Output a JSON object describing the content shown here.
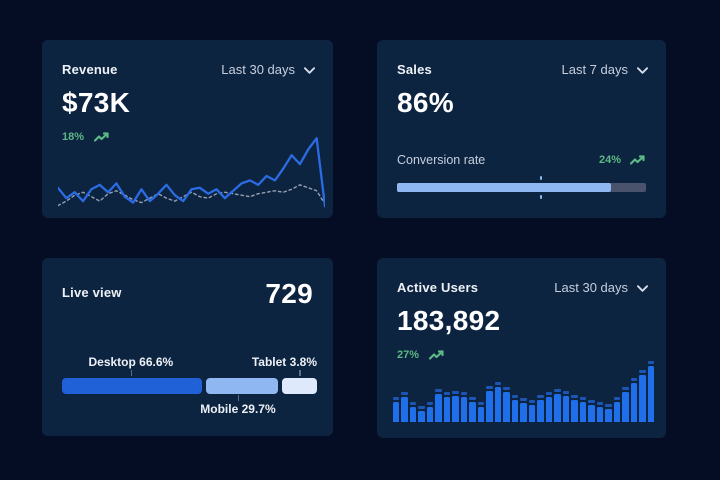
{
  "page": {
    "background": "#050D24",
    "card_background": "#0D2440"
  },
  "colors": {
    "accent_blue": "#2B6BE4",
    "bright_bar_blue": "#1F6FEB",
    "light_blue": "#8FB8F2",
    "pale_blue": "#DEEAFB",
    "green": "#5CB885",
    "muted_text": "#C6CEDD",
    "track_gray": "#49536B",
    "dashed_gray": "#93A0B4"
  },
  "icons": {
    "chevron_down": "chevron-down-icon",
    "trending_up": "trending-up-icon"
  },
  "cards": {
    "revenue": {
      "title": "Revenue",
      "range_label": "Last 30 days",
      "value": "$73K",
      "delta": "18%"
    },
    "sales": {
      "title": "Sales",
      "range_label": "Last 7 days",
      "value": "86%",
      "metric_label": "Conversion rate",
      "delta": "24%"
    },
    "live_view": {
      "title": "Live view",
      "value": "729"
    },
    "active_users": {
      "title": "Active Users",
      "range_label": "Last 30 days",
      "value": "183,892",
      "delta": "27%"
    }
  },
  "chart_data": [
    {
      "id": "revenue-trend",
      "type": "line",
      "title": "Revenue — Last 30 days",
      "xlabel": "",
      "ylabel": "",
      "grid": false,
      "legend": "none",
      "ylim": [
        0,
        100
      ],
      "series": [
        {
          "name": "current period",
          "style": "solid",
          "color": "#2B6BE4",
          "values": [
            30,
            16,
            24,
            12,
            28,
            34,
            24,
            36,
            18,
            10,
            28,
            12,
            22,
            34,
            20,
            12,
            28,
            30,
            22,
            28,
            16,
            26,
            36,
            40,
            34,
            46,
            40,
            56,
            74,
            62,
            82,
            97,
            5
          ]
        },
        {
          "name": "previous period",
          "style": "dashed",
          "color": "#93A0B4",
          "values": [
            6,
            12,
            20,
            24,
            18,
            12,
            22,
            26,
            20,
            14,
            10,
            16,
            22,
            16,
            12,
            18,
            24,
            18,
            16,
            22,
            24,
            22,
            20,
            18,
            22,
            24,
            26,
            24,
            28,
            34,
            30,
            26,
            8
          ]
        }
      ]
    },
    {
      "id": "conversion-progress",
      "type": "bar",
      "subtype": "progress-horizontal",
      "title": "Conversion rate",
      "value_pct": 86,
      "marker_pct": 58,
      "fill_color": "#8FB8F2",
      "track_color": "#49536B"
    },
    {
      "id": "device-split",
      "type": "bar",
      "subtype": "stacked-horizontal",
      "title": "Live view device split",
      "segments": [
        {
          "label": "Desktop",
          "value_pct": 66.6,
          "label_text": "Desktop 66.6%",
          "display_pct": 55,
          "color": "#2161D8"
        },
        {
          "label": "Mobile",
          "value_pct": 29.7,
          "label_text": "Mobile 29.7%",
          "display_pct": 28,
          "color": "#8FB8F2"
        },
        {
          "label": "Tablet",
          "value_pct": 3.8,
          "label_text": "Tablet 3.8%",
          "display_pct": 14,
          "color": "#DEEAFB"
        }
      ]
    },
    {
      "id": "active-users-daily",
      "type": "bar",
      "title": "Active Users — Last 30 days",
      "bar_color": "#1F6FEB",
      "cap_color": "#1C55B4",
      "ylim": [
        0,
        100
      ],
      "values": [
        36,
        44,
        26,
        20,
        26,
        50,
        44,
        47,
        44,
        36,
        26,
        56,
        63,
        53,
        40,
        34,
        30,
        40,
        45,
        50,
        46,
        40,
        36,
        30,
        26,
        24,
        36,
        54,
        70,
        84,
        100
      ]
    }
  ]
}
